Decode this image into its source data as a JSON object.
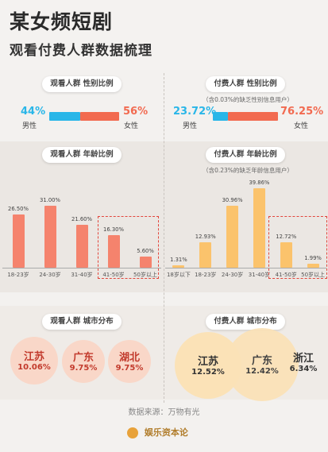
{
  "header": {
    "title": "某女频短剧",
    "subtitle": "观看付费人群数据梳理"
  },
  "left": {
    "gender_pill": "观看人群 性别比例",
    "male_pct": "44%",
    "male_label": "男性",
    "female_pct": "56%",
    "female_label": "女性",
    "age_pill": "观看人群 年龄比例",
    "city_pill": "观看人群 城市分布",
    "cities": [
      {
        "name": "江苏",
        "value": "10.06%"
      },
      {
        "name": "广东",
        "value": "9.75%"
      },
      {
        "name": "湖北",
        "value": "9.75%"
      }
    ]
  },
  "right": {
    "gender_pill": "付费人群 性别比例",
    "gender_note": "（含0.03%的缺乏性别信息用户）",
    "male_pct": "23.72%",
    "male_label": "男性",
    "female_pct": "76.25%",
    "female_label": "女性",
    "age_pill": "付费人群 年龄比例",
    "age_note": "（含0.23%的缺乏年龄信息用户）",
    "city_pill": "付费人群 城市分布",
    "cities": [
      {
        "name": "江苏",
        "value": "12.52%"
      },
      {
        "name": "广东",
        "value": "12.42%"
      },
      {
        "name": "浙江",
        "value": "6.34%"
      }
    ]
  },
  "source": "数据来源：万物有光",
  "footer": "娱乐资本论",
  "colors": {
    "blue": "#29b6e8",
    "coral": "#f26a50",
    "salmon": "#f5836d",
    "yellow": "#fbc36c",
    "red": "#e2463c"
  },
  "chart_data": [
    {
      "type": "bar",
      "title": "观看人群 年龄比例",
      "categories": [
        "18-23岁",
        "24-30岁",
        "31-40岁",
        "41-50岁",
        "50岁以上"
      ],
      "values": [
        26.5,
        31.0,
        21.6,
        16.3,
        5.6
      ],
      "labels": [
        "26.50%",
        "31.00%",
        "21.60%",
        "16.30%",
        "5.60%"
      ]
    },
    {
      "type": "bar",
      "title": "付费人群 年龄比例",
      "categories": [
        "18岁以下",
        "18-23岁",
        "24-30岁",
        "31-40岁",
        "41-50岁",
        "50岁以上"
      ],
      "values": [
        1.31,
        12.93,
        30.96,
        39.86,
        12.72,
        1.99
      ],
      "labels": [
        "1.31%",
        "12.93%",
        "30.96%",
        "39.86%",
        "12.72%",
        "1.99%"
      ]
    },
    {
      "type": "bar",
      "title": "观看人群 性别比例",
      "categories": [
        "男性",
        "女性"
      ],
      "values": [
        44,
        56
      ]
    },
    {
      "type": "bar",
      "title": "付费人群 性别比例",
      "categories": [
        "男性",
        "女性"
      ],
      "values": [
        23.72,
        76.25
      ]
    }
  ]
}
